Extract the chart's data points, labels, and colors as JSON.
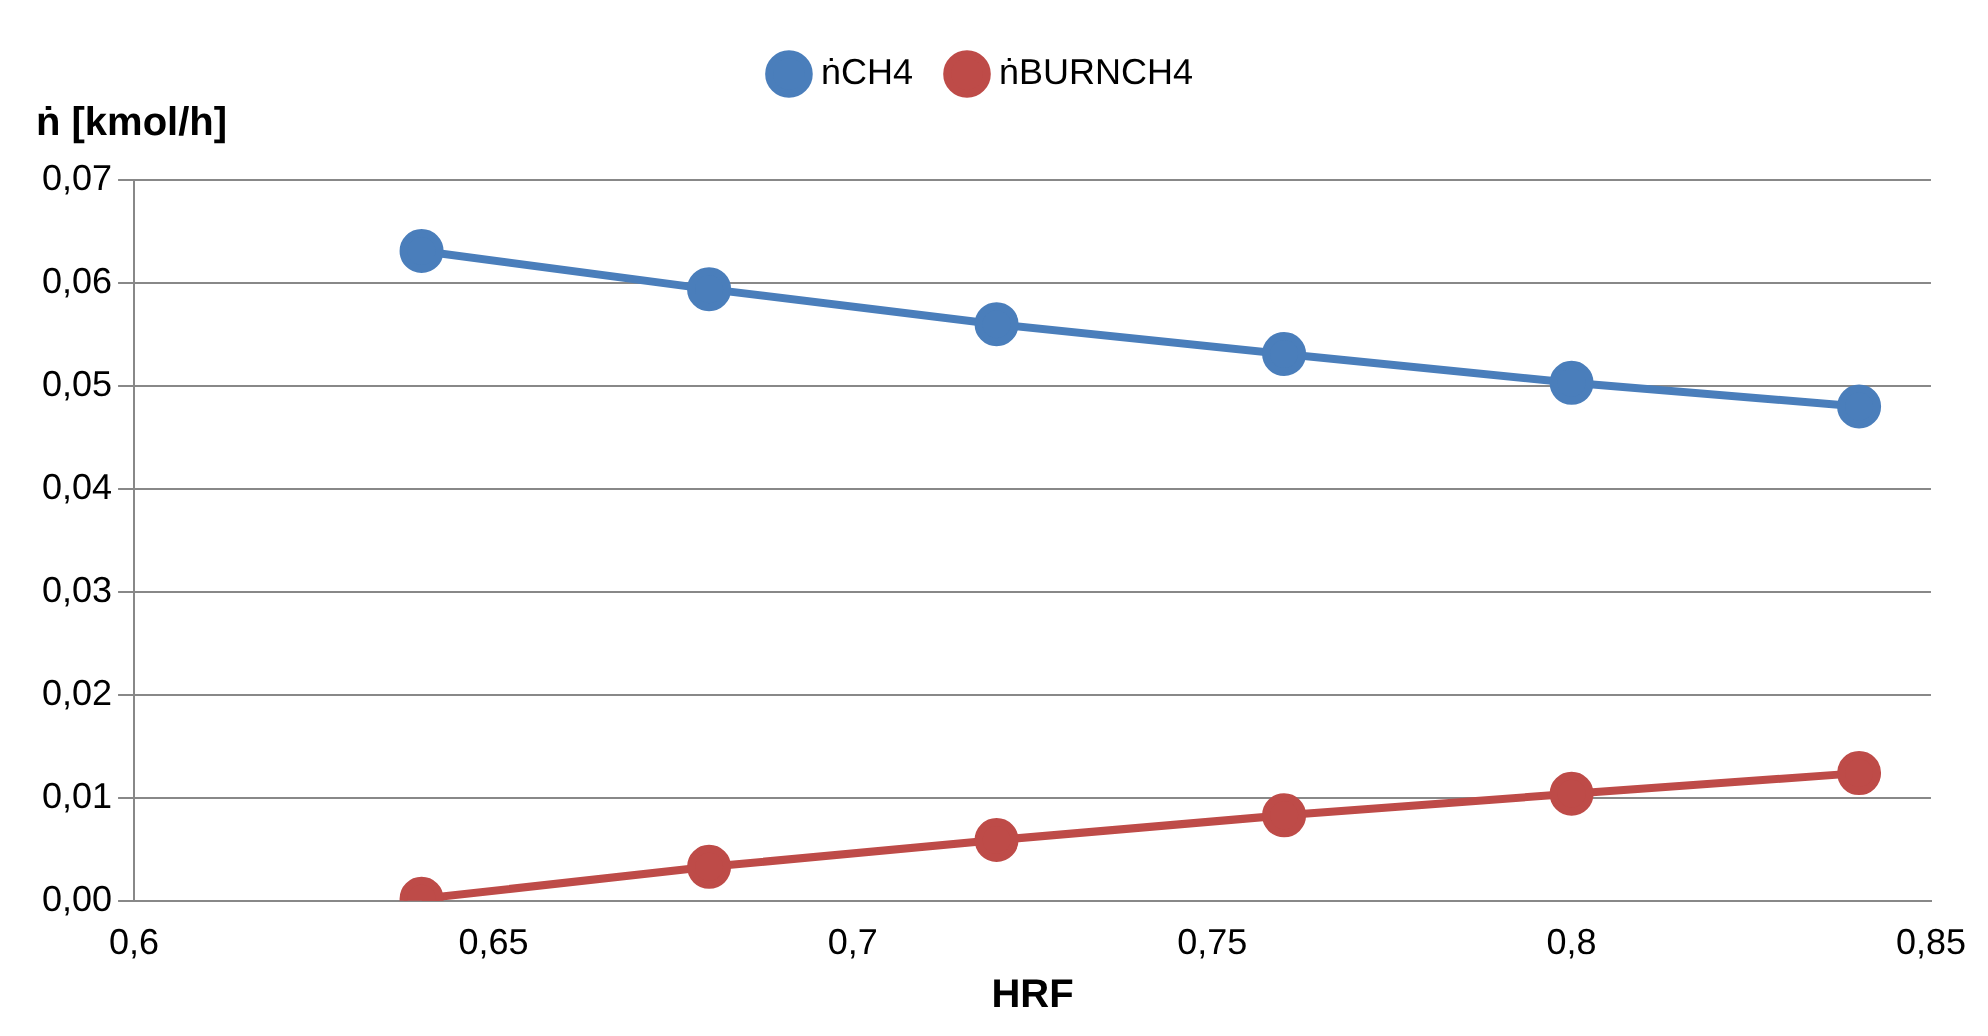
{
  "chart_data": {
    "type": "line",
    "xlabel": "HRF",
    "ylabel": "ṅ [kmol/h]",
    "x": [
      0.64,
      0.68,
      0.72,
      0.76,
      0.8,
      0.84
    ],
    "series": [
      {
        "name": "ṅCH4",
        "color": "#4a7ebb",
        "values": [
          0.0631,
          0.0594,
          0.056,
          0.0531,
          0.0503,
          0.048
        ]
      },
      {
        "name": "ṅBURNCH4",
        "color": "#be4b48",
        "values": [
          0.0002,
          0.0033,
          0.0059,
          0.0083,
          0.0104,
          0.0124
        ]
      }
    ],
    "xlim": [
      0.6,
      0.85
    ],
    "xticks": [
      {
        "value": 0.6,
        "label": "0,6"
      },
      {
        "value": 0.65,
        "label": "0,65"
      },
      {
        "value": 0.7,
        "label": "0,7"
      },
      {
        "value": 0.75,
        "label": "0,75"
      },
      {
        "value": 0.8,
        "label": "0,8"
      },
      {
        "value": 0.85,
        "label": "0,85"
      }
    ],
    "ylim": [
      0,
      0.07
    ],
    "yticks": [
      {
        "value": 0,
        "label": "0,00"
      },
      {
        "value": 0.01,
        "label": "0,01"
      },
      {
        "value": 0.02,
        "label": "0,02"
      },
      {
        "value": 0.03,
        "label": "0,03"
      },
      {
        "value": 0.04,
        "label": "0,04"
      },
      {
        "value": 0.05,
        "label": "0,05"
      },
      {
        "value": 0.06,
        "label": "0,06"
      },
      {
        "value": 0.07,
        "label": "0,07"
      }
    ],
    "grid": "y",
    "legend": "top",
    "marker": "circle",
    "line_style": "solid"
  }
}
